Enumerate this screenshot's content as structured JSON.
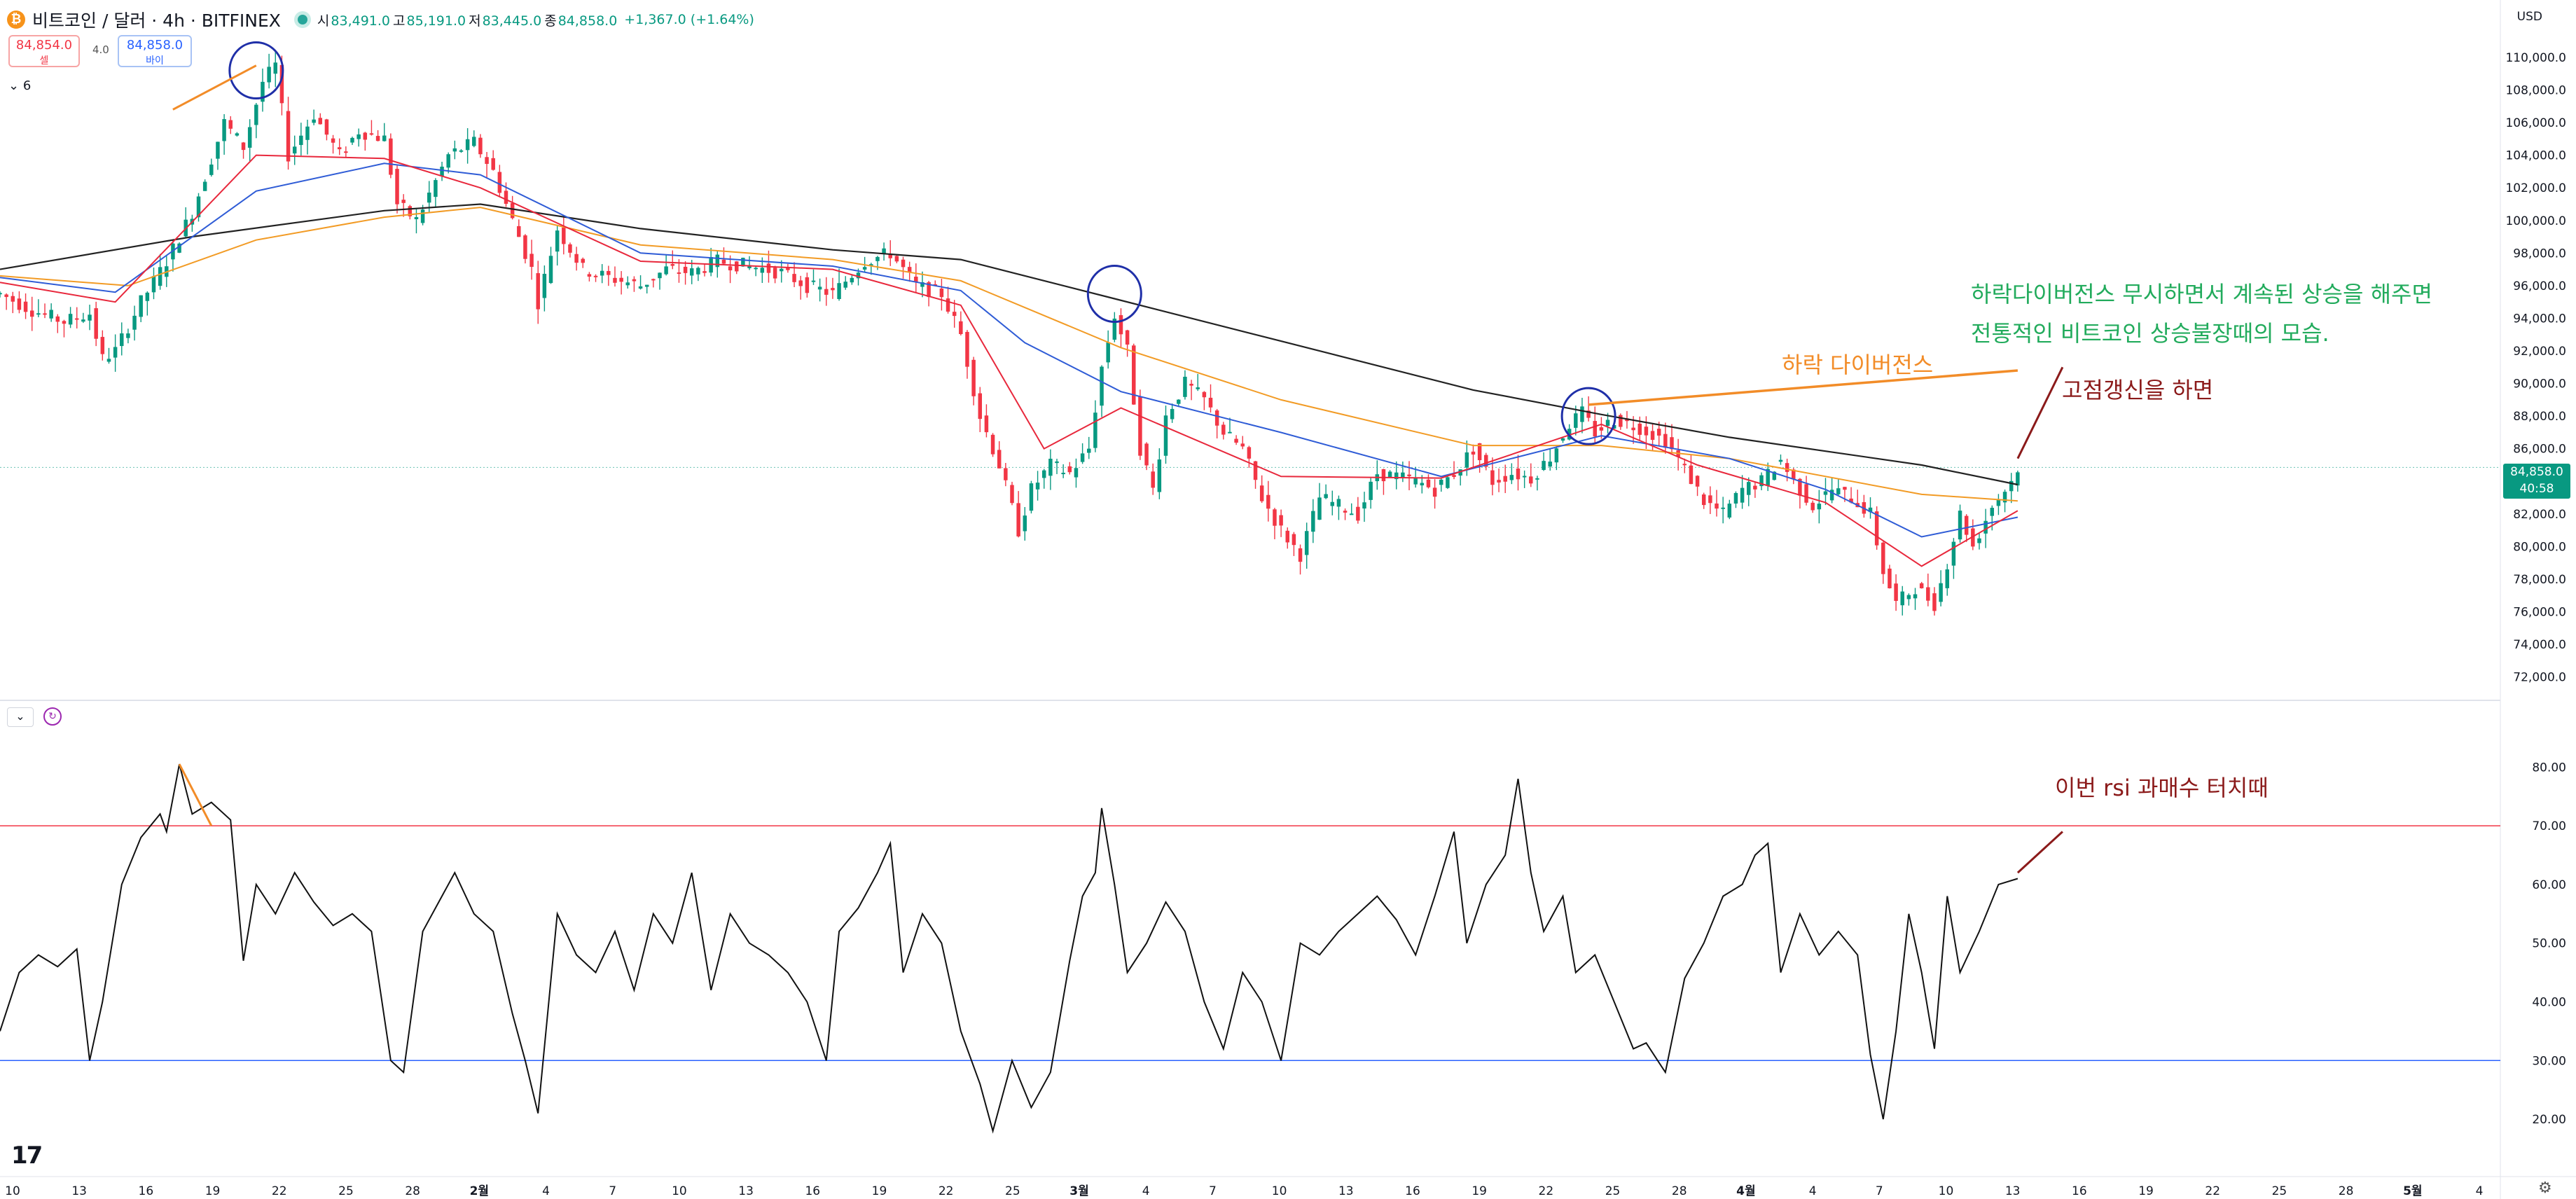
{
  "header": {
    "symbol_title": "비트코인 / 달러 · 4h · BITFINEX",
    "symbol_icon": "bitcoin-icon",
    "open_label": "시",
    "open": "83,491.0",
    "high_label": "고",
    "high": "85,191.0",
    "low_label": "저",
    "low": "83,445.0",
    "close_label": "종",
    "close": "84,858.0",
    "change": "+1,367.0 (+1.64%)",
    "currency": "USD"
  },
  "trade": {
    "sell_price": "84,854.0",
    "sell_label": "셀",
    "spread": "4.0",
    "buy_price": "84,858.0",
    "buy_label": "바이"
  },
  "legend_toggle": "6",
  "last_price": {
    "value": "84,858.0",
    "countdown": "40:58"
  },
  "colors": {
    "up": "#089981",
    "down": "#f23645",
    "ema_red": "#e8283c",
    "ema_blue": "#2f5cd6",
    "ema_orange": "#f29b25",
    "ma_black": "#222222",
    "annot_green": "#22ab5c",
    "annot_orange": "#f28c28",
    "annot_darkred": "#8b1a1a",
    "rsi_upper": "#f23645",
    "rsi_lower": "#2962ff"
  },
  "annotations": {
    "divergence_note_line1": "하락다이버전스 무시하면서 계속된 상승을 해주면",
    "divergence_note_line2": "전통적인 비트코인 상승불장때의 모습.",
    "bearish_divergence": "하락 다이버전스",
    "new_high": "고점갱신을 하면",
    "rsi_overbought": "이번 rsi 과매수 터치때"
  },
  "chart_data": [
    {
      "type": "candlestick",
      "y_axis_ticks": [
        "110,000.0",
        "108,000.0",
        "106,000.0",
        "104,000.0",
        "102,000.0",
        "100,000.0",
        "98,000.0",
        "96,000.0",
        "94,000.0",
        "92,000.0",
        "90,000.0",
        "88,000.0",
        "86,000.0",
        "84,000.0",
        "82,000.0",
        "80,000.0",
        "78,000.0",
        "76,000.0",
        "74,000.0",
        "72,000.0"
      ],
      "ylim": [
        71000,
        111800
      ],
      "x_axis_ticks": [
        "10",
        "13",
        "16",
        "19",
        "22",
        "25",
        "28",
        "2월",
        "4",
        "7",
        "10",
        "13",
        "16",
        "19",
        "22",
        "25",
        "3월",
        "4",
        "7",
        "10",
        "13",
        "16",
        "19",
        "22",
        "25",
        "28",
        "4월",
        "4",
        "7",
        "10",
        "13",
        "16",
        "19",
        "22",
        "25",
        "28",
        "5월",
        "4"
      ],
      "price_path": [
        [
          0,
          95500
        ],
        [
          5,
          94500
        ],
        [
          10,
          93800
        ],
        [
          14,
          94300
        ],
        [
          16,
          91500
        ],
        [
          18,
          92000
        ],
        [
          22,
          95000
        ],
        [
          26,
          97500
        ],
        [
          30,
          100500
        ],
        [
          35,
          106000
        ],
        [
          38,
          104500
        ],
        [
          41,
          108500
        ],
        [
          43,
          109500
        ],
        [
          45,
          104000
        ],
        [
          49,
          106500
        ],
        [
          53,
          104000
        ],
        [
          56,
          105500
        ],
        [
          60,
          105000
        ],
        [
          62,
          101000
        ],
        [
          65,
          100000
        ],
        [
          70,
          104000
        ],
        [
          74,
          104800
        ],
        [
          77,
          103000
        ],
        [
          80,
          100000
        ],
        [
          83,
          97000
        ],
        [
          84,
          95000
        ],
        [
          87,
          99500
        ],
        [
          91,
          97000
        ],
        [
          95,
          96500
        ],
        [
          100,
          96000
        ],
        [
          104,
          97000
        ],
        [
          108,
          96800
        ],
        [
          112,
          97500
        ],
        [
          117,
          97200
        ],
        [
          122,
          96800
        ],
        [
          126,
          96000
        ],
        [
          130,
          95500
        ],
        [
          135,
          97500
        ],
        [
          139,
          98000
        ],
        [
          143,
          96000
        ],
        [
          147,
          95500
        ],
        [
          150,
          93000
        ],
        [
          153,
          88000
        ],
        [
          156,
          85000
        ],
        [
          159,
          81000
        ],
        [
          161,
          83500
        ],
        [
          164,
          85000
        ],
        [
          167,
          84500
        ],
        [
          170,
          86000
        ],
        [
          172,
          91000
        ],
        [
          174,
          94200
        ],
        [
          176,
          92000
        ],
        [
          178,
          86000
        ],
        [
          180,
          83500
        ],
        [
          182,
          88000
        ],
        [
          185,
          90000
        ],
        [
          188,
          89000
        ],
        [
          191,
          87000
        ],
        [
          194,
          86000
        ],
        [
          197,
          83000
        ],
        [
          200,
          81000
        ],
        [
          203,
          79500
        ],
        [
          206,
          83000
        ],
        [
          209,
          82500
        ],
        [
          212,
          82000
        ],
        [
          215,
          84500
        ],
        [
          218,
          84300
        ],
        [
          221,
          84000
        ],
        [
          224,
          83500
        ],
        [
          227,
          84500
        ],
        [
          230,
          86000
        ],
        [
          233,
          84000
        ],
        [
          236,
          84500
        ],
        [
          239,
          84200
        ],
        [
          242,
          85500
        ],
        [
          245,
          87500
        ],
        [
          247,
          88200
        ],
        [
          249,
          87000
        ],
        [
          252,
          87800
        ],
        [
          256,
          87300
        ],
        [
          260,
          86500
        ],
        [
          263,
          84800
        ],
        [
          266,
          82800
        ],
        [
          269,
          82000
        ],
        [
          272,
          83500
        ],
        [
          275,
          84000
        ],
        [
          278,
          85300
        ],
        [
          280,
          84000
        ],
        [
          283,
          82500
        ],
        [
          286,
          83500
        ],
        [
          289,
          83000
        ],
        [
          292,
          82000
        ],
        [
          294,
          78500
        ],
        [
          296,
          76500
        ],
        [
          299,
          77500
        ],
        [
          302,
          76500
        ],
        [
          304,
          79000
        ],
        [
          306,
          82000
        ],
        [
          308,
          80000
        ],
        [
          311,
          82500
        ],
        [
          314,
          84000
        ],
        [
          315,
          84858
        ]
      ],
      "ma_black": [
        [
          0,
          97000
        ],
        [
          30,
          99000
        ],
        [
          60,
          100600
        ],
        [
          75,
          101000
        ],
        [
          100,
          99500
        ],
        [
          130,
          98200
        ],
        [
          150,
          97600
        ],
        [
          174,
          95200
        ],
        [
          200,
          92600
        ],
        [
          230,
          89600
        ],
        [
          250,
          88100
        ],
        [
          270,
          86700
        ],
        [
          300,
          85000
        ],
        [
          315,
          83800
        ]
      ],
      "ema_orange": [
        [
          0,
          96600
        ],
        [
          20,
          96000
        ],
        [
          40,
          98800
        ],
        [
          60,
          100200
        ],
        [
          75,
          100800
        ],
        [
          100,
          98500
        ],
        [
          130,
          97600
        ],
        [
          150,
          96300
        ],
        [
          175,
          92200
        ],
        [
          200,
          89000
        ],
        [
          230,
          86200
        ],
        [
          250,
          86200
        ],
        [
          270,
          85400
        ],
        [
          300,
          83200
        ],
        [
          315,
          82800
        ]
      ],
      "ema_blue": [
        [
          0,
          96500
        ],
        [
          18,
          95600
        ],
        [
          40,
          101800
        ],
        [
          60,
          103500
        ],
        [
          75,
          102800
        ],
        [
          100,
          98000
        ],
        [
          130,
          97200
        ],
        [
          150,
          95700
        ],
        [
          160,
          92500
        ],
        [
          175,
          89500
        ],
        [
          200,
          87000
        ],
        [
          225,
          84300
        ],
        [
          250,
          86800
        ],
        [
          270,
          85400
        ],
        [
          285,
          83500
        ],
        [
          300,
          80600
        ],
        [
          315,
          81800
        ]
      ],
      "ema_red": [
        [
          0,
          96200
        ],
        [
          18,
          95000
        ],
        [
          40,
          104000
        ],
        [
          60,
          103800
        ],
        [
          75,
          102000
        ],
        [
          100,
          97500
        ],
        [
          130,
          97000
        ],
        [
          150,
          94800
        ],
        [
          163,
          86000
        ],
        [
          175,
          88500
        ],
        [
          200,
          84300
        ],
        [
          225,
          84200
        ],
        [
          250,
          87500
        ],
        [
          265,
          85000
        ],
        [
          285,
          82700
        ],
        [
          300,
          78800
        ],
        [
          315,
          82200
        ]
      ],
      "circles": [
        [
          40,
          109200
        ],
        [
          174,
          95500
        ],
        [
          248,
          88000
        ]
      ],
      "divergence_line": [
        [
          248,
          88700
        ],
        [
          315,
          90800
        ]
      ],
      "peak_line": [
        [
          27,
          106800
        ],
        [
          40,
          109500
        ]
      ],
      "new_high_arrow": [
        [
          322,
          91000
        ],
        [
          315,
          85400
        ]
      ]
    },
    {
      "type": "line",
      "name": "RSI",
      "y_axis_ticks": [
        "80.00",
        "70.00",
        "60.00",
        "50.00",
        "40.00",
        "30.00",
        "20.00"
      ],
      "ylim": [
        15,
        86
      ],
      "upper_band": 70,
      "lower_band": 30,
      "values": [
        [
          0,
          35
        ],
        [
          3,
          45
        ],
        [
          6,
          48
        ],
        [
          9,
          46
        ],
        [
          12,
          49
        ],
        [
          14,
          30
        ],
        [
          16,
          40
        ],
        [
          19,
          60
        ],
        [
          22,
          68
        ],
        [
          25,
          72
        ],
        [
          26,
          69
        ],
        [
          28,
          80.5
        ],
        [
          30,
          72
        ],
        [
          33,
          74
        ],
        [
          36,
          71
        ],
        [
          38,
          47
        ],
        [
          40,
          60
        ],
        [
          43,
          55
        ],
        [
          46,
          62
        ],
        [
          49,
          57
        ],
        [
          52,
          53
        ],
        [
          55,
          55
        ],
        [
          58,
          52
        ],
        [
          61,
          30
        ],
        [
          63,
          28
        ],
        [
          66,
          52
        ],
        [
          69,
          58
        ],
        [
          71,
          62
        ],
        [
          74,
          55
        ],
        [
          77,
          52
        ],
        [
          80,
          38
        ],
        [
          82,
          30
        ],
        [
          84,
          21
        ],
        [
          87,
          55
        ],
        [
          90,
          48
        ],
        [
          93,
          45
        ],
        [
          96,
          52
        ],
        [
          99,
          42
        ],
        [
          102,
          55
        ],
        [
          105,
          50
        ],
        [
          108,
          62
        ],
        [
          111,
          42
        ],
        [
          114,
          55
        ],
        [
          117,
          50
        ],
        [
          120,
          48
        ],
        [
          123,
          45
        ],
        [
          126,
          40
        ],
        [
          129,
          30
        ],
        [
          131,
          52
        ],
        [
          134,
          56
        ],
        [
          137,
          62
        ],
        [
          139,
          67
        ],
        [
          141,
          45
        ],
        [
          144,
          55
        ],
        [
          147,
          50
        ],
        [
          150,
          35
        ],
        [
          153,
          26
        ],
        [
          155,
          18
        ],
        [
          158,
          30
        ],
        [
          161,
          22
        ],
        [
          164,
          28
        ],
        [
          167,
          47
        ],
        [
          169,
          58
        ],
        [
          171,
          62
        ],
        [
          172,
          73
        ],
        [
          174,
          60
        ],
        [
          176,
          45
        ],
        [
          179,
          50
        ],
        [
          182,
          57
        ],
        [
          185,
          52
        ],
        [
          188,
          40
        ],
        [
          191,
          32
        ],
        [
          194,
          45
        ],
        [
          197,
          40
        ],
        [
          200,
          30
        ],
        [
          203,
          50
        ],
        [
          206,
          48
        ],
        [
          209,
          52
        ],
        [
          212,
          55
        ],
        [
          215,
          58
        ],
        [
          218,
          54
        ],
        [
          221,
          48
        ],
        [
          224,
          58
        ],
        [
          227,
          69
        ],
        [
          229,
          50
        ],
        [
          232,
          60
        ],
        [
          235,
          65
        ],
        [
          237,
          78
        ],
        [
          239,
          62
        ],
        [
          241,
          52
        ],
        [
          244,
          58
        ],
        [
          246,
          45
        ],
        [
          249,
          48
        ],
        [
          252,
          40
        ],
        [
          255,
          32
        ],
        [
          257,
          33
        ],
        [
          260,
          28
        ],
        [
          263,
          44
        ],
        [
          266,
          50
        ],
        [
          269,
          58
        ],
        [
          272,
          60
        ],
        [
          274,
          65
        ],
        [
          276,
          67
        ],
        [
          278,
          45
        ],
        [
          281,
          55
        ],
        [
          284,
          48
        ],
        [
          287,
          52
        ],
        [
          290,
          48
        ],
        [
          292,
          31
        ],
        [
          294,
          20
        ],
        [
          296,
          35
        ],
        [
          298,
          55
        ],
        [
          300,
          45
        ],
        [
          302,
          32
        ],
        [
          304,
          58
        ],
        [
          306,
          45
        ],
        [
          309,
          52
        ],
        [
          312,
          60
        ],
        [
          315,
          61
        ]
      ],
      "divergence_line": [
        [
          28,
          80.5
        ],
        [
          33,
          70
        ]
      ],
      "overbought_arrow": [
        [
          322,
          69
        ],
        [
          315,
          62
        ]
      ]
    }
  ]
}
